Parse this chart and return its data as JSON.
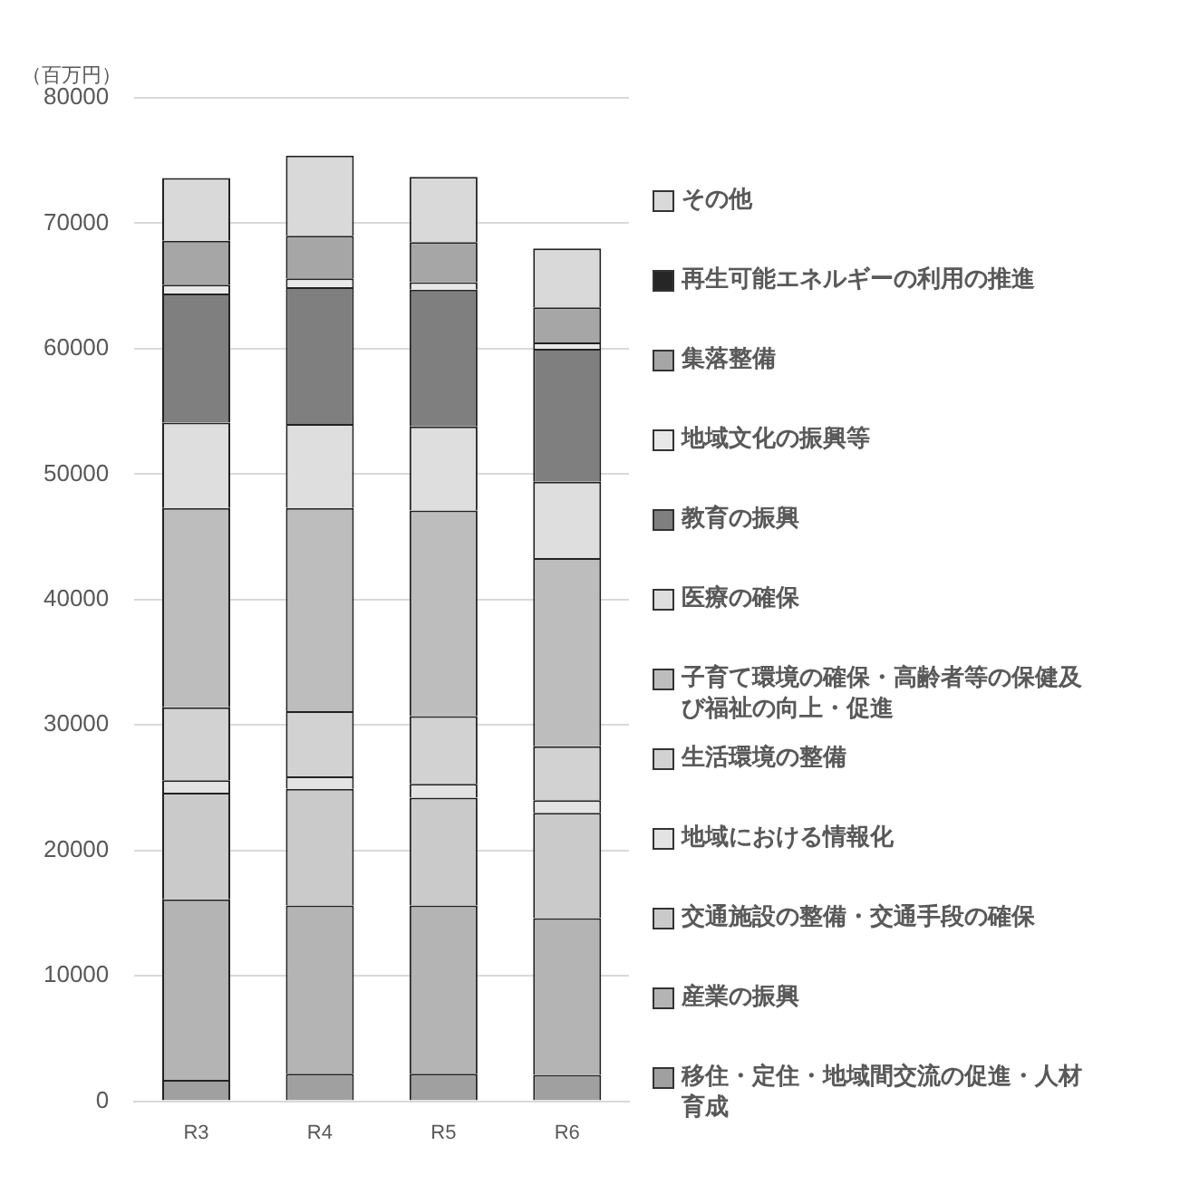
{
  "chart_data": {
    "type": "bar",
    "stacked": true,
    "ylabel": "（百万円）",
    "categories": [
      "R3",
      "R4",
      "R5",
      "R6"
    ],
    "series": [
      {
        "name": "移住・定住・地域間交流の促進・人材育成",
        "color": "#a0a0a0",
        "values": [
          1700,
          2200,
          2200,
          2100
        ]
      },
      {
        "name": "産業の振興",
        "color": "#b4b4b4",
        "values": [
          14400,
          13400,
          13400,
          12500
        ]
      },
      {
        "name": "交通施設の整備・交通手段の確保",
        "color": "#cacaca",
        "values": [
          8500,
          9300,
          8600,
          8400
        ]
      },
      {
        "name": "地域における情報化",
        "color": "#e3e3e3",
        "values": [
          1000,
          1000,
          1100,
          1000
        ]
      },
      {
        "name": "生活環境の整備",
        "color": "#d2d2d2",
        "values": [
          5800,
          5200,
          5400,
          4300
        ]
      },
      {
        "name": "子育て環境の確保・高齢者等の保健及び福祉の向上・促進",
        "color": "#bdbdbd",
        "values": [
          15900,
          16200,
          16400,
          15000
        ]
      },
      {
        "name": "医療の確保",
        "color": "#dedede",
        "values": [
          6800,
          6700,
          6700,
          6100
        ]
      },
      {
        "name": "教育の振興",
        "color": "#7f7f7f",
        "values": [
          10300,
          10900,
          10900,
          10600
        ]
      },
      {
        "name": "地域文化の振興等",
        "color": "#e8e8e8",
        "values": [
          700,
          700,
          600,
          500
        ]
      },
      {
        "name": "集落整備",
        "color": "#a6a6a6",
        "values": [
          3500,
          3400,
          3200,
          2800
        ]
      },
      {
        "name": "再生可能エネルギーの利用の推進",
        "color": "#262626",
        "values": [
          0,
          0,
          0,
          0
        ]
      },
      {
        "name": "その他",
        "color": "#d9d9d9",
        "values": [
          5000,
          6400,
          5200,
          4700
        ]
      }
    ],
    "ylim": [
      0,
      80000
    ],
    "yticks": [
      0,
      10000,
      20000,
      30000,
      40000,
      50000,
      60000,
      70000,
      80000
    ],
    "grid": "y",
    "legend": "right"
  }
}
